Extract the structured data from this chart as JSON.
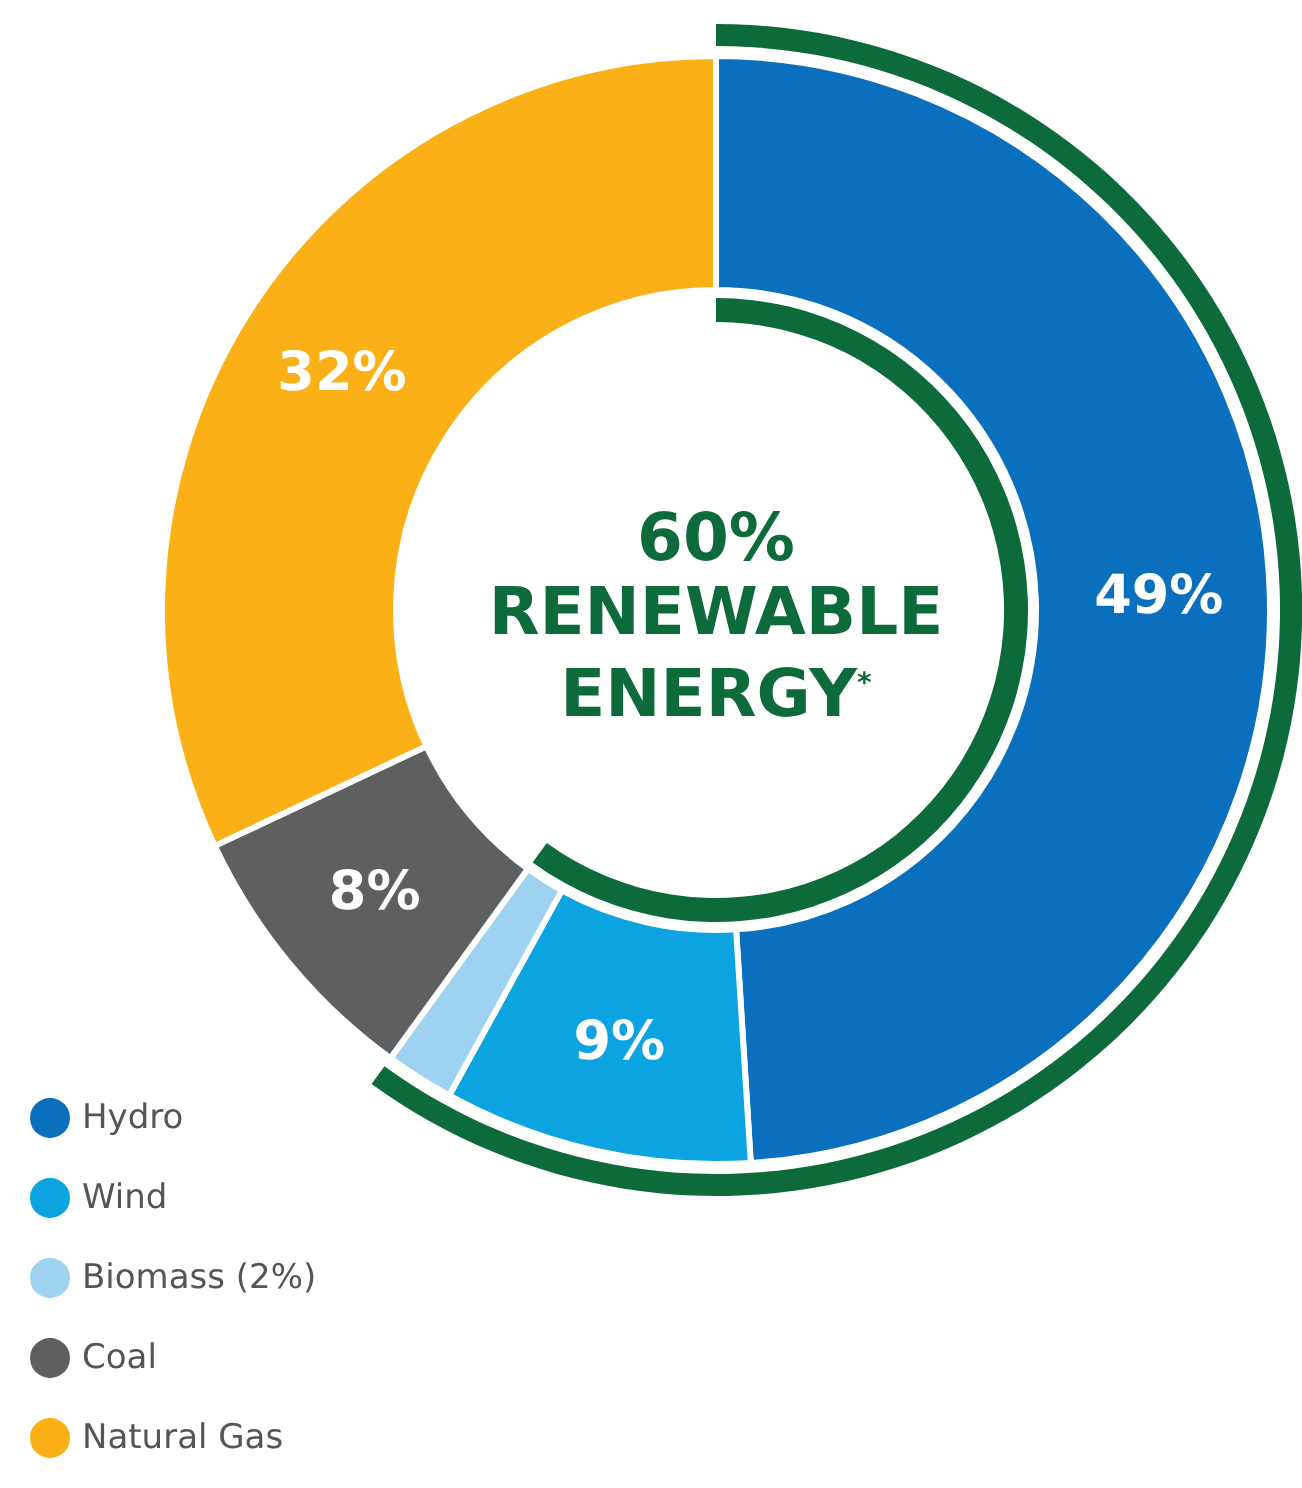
{
  "chart_data": {
    "type": "donut",
    "categories": [
      "Hydro",
      "Wind",
      "Biomass (2%)",
      "Coal",
      "Natural Gas"
    ],
    "values": [
      49,
      9,
      2,
      8,
      32
    ],
    "colors": [
      "#0a6fbd",
      "#0ba3e0",
      "#9dd3f0",
      "#5e5f61",
      "#fbb017"
    ],
    "value_labels": [
      "49%",
      "9%",
      null,
      "8%",
      "32%"
    ],
    "annotations": [
      "60%\nRENEWABLE\nENERGY$^{*}$"
    ],
    "legend": "bottom left"
  }
}
